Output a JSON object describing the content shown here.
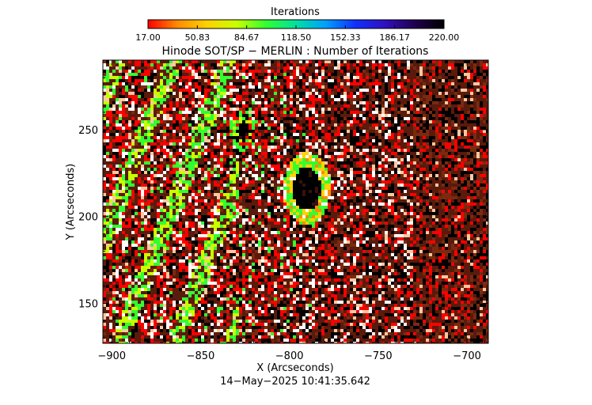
{
  "colorbar": {
    "title": "Iterations",
    "tick_labels": [
      "17.00",
      "50.83",
      "84.67",
      "118.50",
      "152.33",
      "186.17",
      "220.00"
    ],
    "colors": [
      "#ff0000",
      "#ff8c00",
      "#ffd200",
      "#c8ff00",
      "#30ff30",
      "#00e0a0",
      "#00a0ff",
      "#1030ff",
      "#3010c0",
      "#200050",
      "#000000"
    ]
  },
  "chart_data": {
    "type": "heatmap",
    "title": "Hinode SOT/SP − MERLIN : Number of Iterations",
    "xlabel": "X (Arcseconds)",
    "ylabel": "Y (Arcseconds)",
    "xlim": [
      -905,
      -688
    ],
    "ylim": [
      127,
      290
    ],
    "x_ticks": [
      -900,
      -850,
      -800,
      -750,
      -700
    ],
    "x_tick_labels": [
      "−900",
      "−850",
      "−800",
      "−750",
      "−700"
    ],
    "y_ticks": [
      150,
      200,
      250
    ],
    "y_tick_labels": [
      "150",
      "200",
      "250"
    ],
    "value_range": [
      17.0,
      220.0
    ],
    "features": [
      {
        "name": "large dark patch",
        "x": -791,
        "y": 217,
        "value": 220
      },
      {
        "name": "small dark patch",
        "x": -827,
        "y": 250,
        "value": 220
      }
    ],
    "grid": false,
    "timestamp": "14−May−2025 10:41:35.642"
  }
}
